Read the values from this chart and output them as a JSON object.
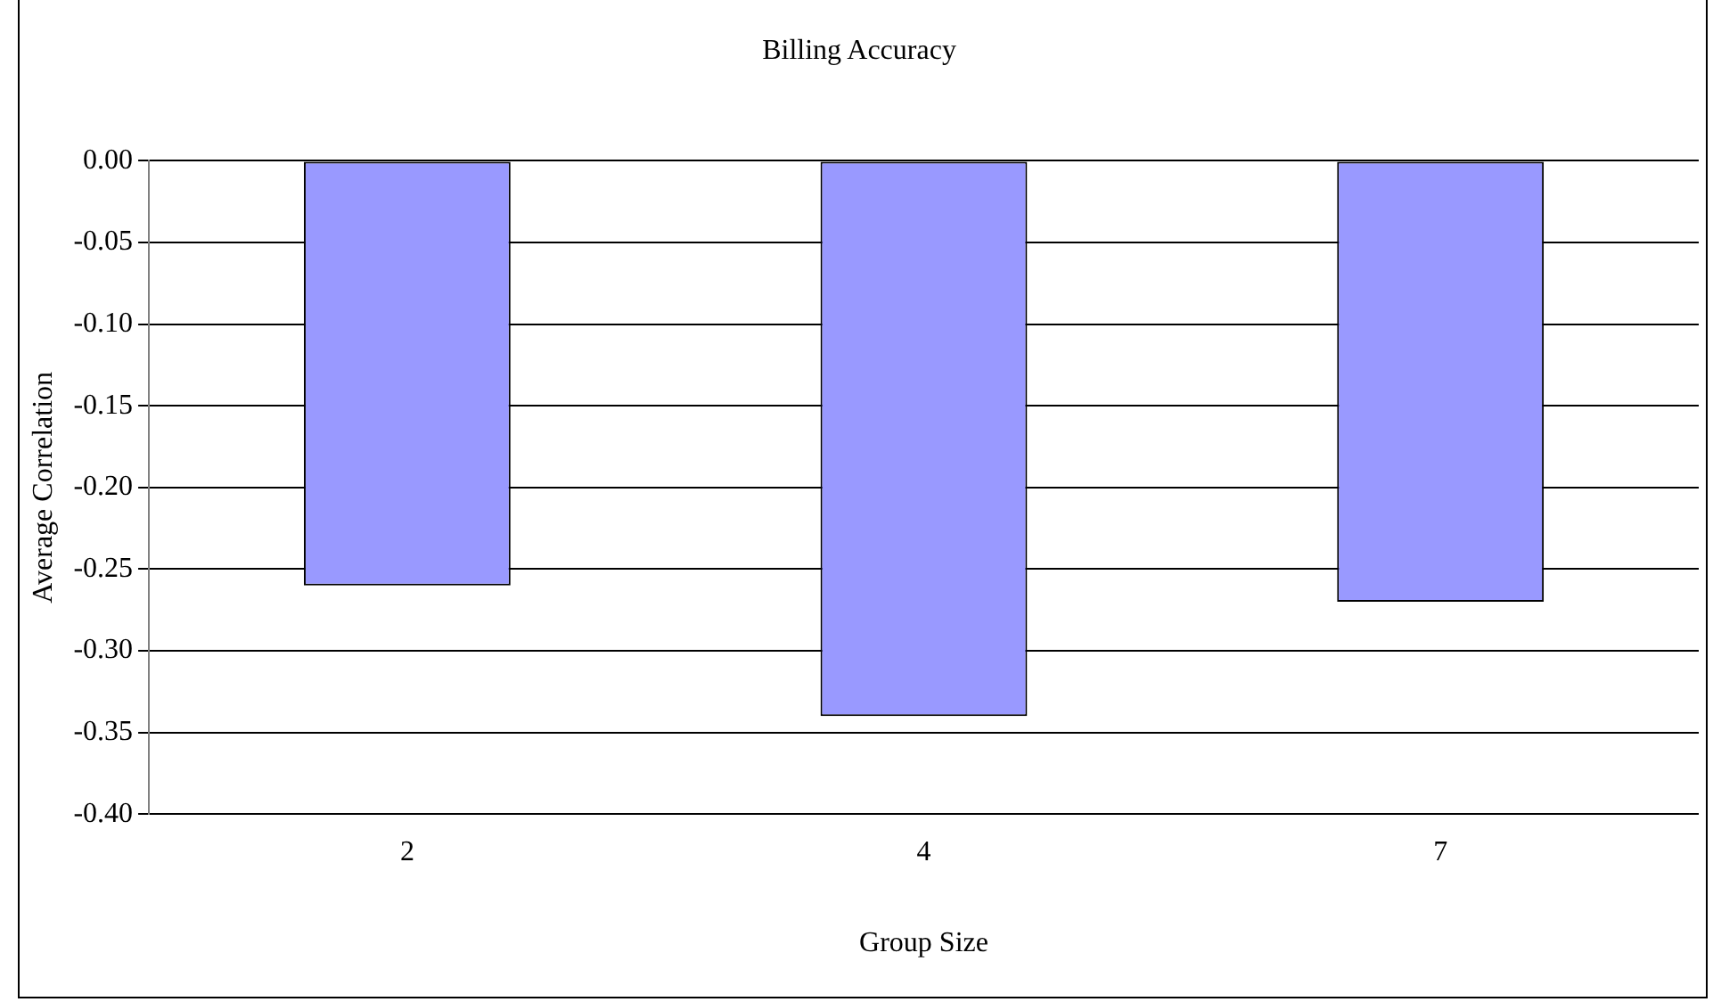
{
  "chart_data": {
    "type": "bar",
    "title": "Billing Accuracy",
    "xlabel": "Group Size",
    "ylabel": "Average Correlation",
    "categories": [
      "2",
      "4",
      "7"
    ],
    "values": [
      -0.26,
      -0.34,
      -0.27
    ],
    "color": "#9999ff",
    "ylim": [
      -0.4,
      0
    ],
    "yticks": [
      {
        "value": 0,
        "label": "0.00"
      },
      {
        "value": -0.05,
        "label": "-0.05"
      },
      {
        "value": -0.1,
        "label": "-0.10"
      },
      {
        "value": -0.15,
        "label": "-0.15"
      },
      {
        "value": -0.2,
        "label": "-0.20"
      },
      {
        "value": -0.25,
        "label": "-0.25"
      },
      {
        "value": -0.3,
        "label": "-0.30"
      },
      {
        "value": -0.35,
        "label": "-0.35"
      },
      {
        "value": -0.4,
        "label": "-0.40"
      }
    ],
    "grid": "y",
    "legend": false
  }
}
